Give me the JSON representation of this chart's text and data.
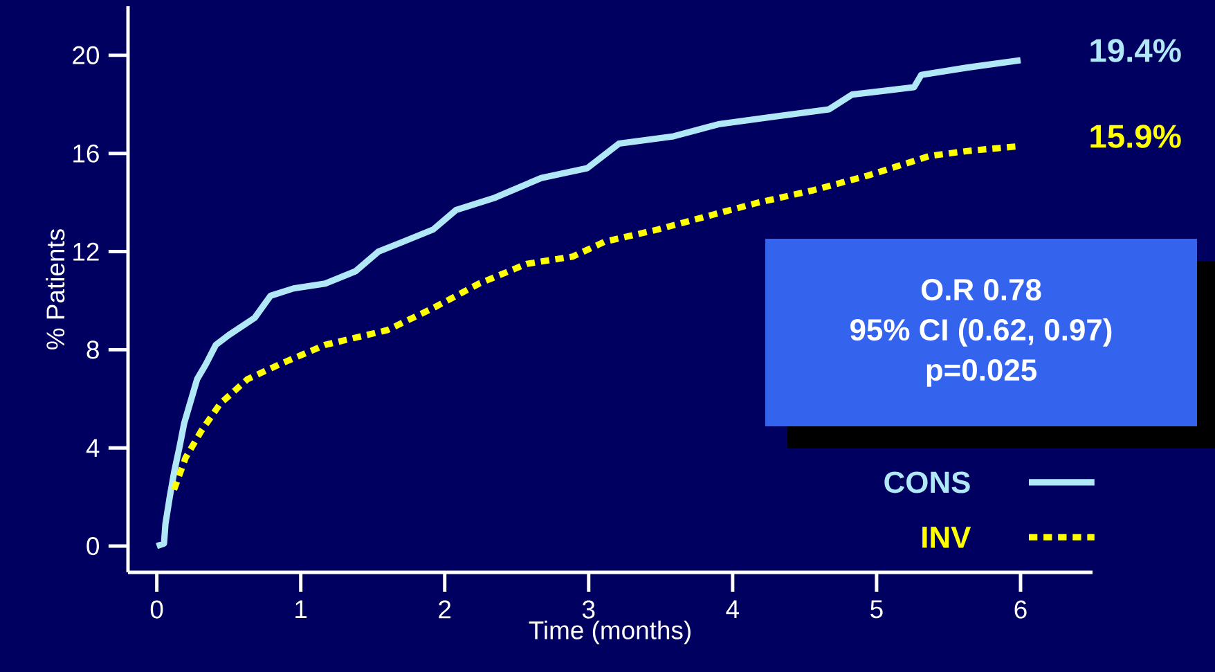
{
  "chart_data": {
    "type": "line",
    "xlabel": "Time (months)",
    "ylabel": "% Patients",
    "xlim": [
      -0.2,
      6.5
    ],
    "ylim": [
      -1.07,
      22
    ],
    "xticks": [
      0,
      1,
      2,
      3,
      4,
      5,
      6
    ],
    "yticks": [
      0,
      4,
      8,
      12,
      16,
      20
    ],
    "grid": false,
    "legend": "bottom right",
    "marker": "none",
    "series": [
      {
        "name": "CONS",
        "color": "#b0e8f8",
        "line_style": "solid",
        "x": [
          0,
          0.05,
          0.06,
          0.09,
          0.12,
          0.16,
          0.19,
          0.23,
          0.28,
          0.34,
          0.41,
          0.5,
          0.68,
          0.79,
          0.95,
          1.17,
          1.38,
          1.54,
          1.71,
          1.92,
          2.08,
          2.35,
          2.67,
          2.99,
          3.21,
          3.59,
          3.91,
          4.29,
          4.67,
          4.83,
          5.26,
          5.31,
          5.63,
          6
        ],
        "values": [
          0,
          0.1,
          0.9,
          2,
          3,
          4.1,
          5,
          5.8,
          6.8,
          7.4,
          8.2,
          8.6,
          9.3,
          10.2,
          10.5,
          10.7,
          11.2,
          12,
          12.4,
          12.9,
          13.7,
          14.2,
          15,
          15.4,
          16.4,
          16.7,
          17.2,
          17.5,
          17.8,
          18.4,
          18.7,
          19.2,
          19.5,
          19.8
        ]
      },
      {
        "name": "INV",
        "color": "#ffff00",
        "line_style": "dotted",
        "x": [
          0.12,
          0.2,
          0.31,
          0.44,
          0.63,
          0.85,
          1.17,
          1.6,
          1.92,
          2.24,
          2.57,
          2.89,
          3.11,
          3.48,
          3.86,
          4.18,
          4.56,
          4.94,
          5.37,
          5.63,
          6
        ],
        "values": [
          2.3,
          3.6,
          4.7,
          5.8,
          6.8,
          7.4,
          8.2,
          8.8,
          9.7,
          10.7,
          11.5,
          11.8,
          12.4,
          12.9,
          13.5,
          14.0,
          14.5,
          15.1,
          15.9,
          16.1,
          16.3
        ]
      }
    ],
    "annotations": [
      {
        "text": "19.4%",
        "x": 6,
        "y": 19.8
      },
      {
        "text": "15.9%",
        "x": 6,
        "y": 16.3
      },
      "O.R  0.78",
      "95% CI (0.62, 0.97)",
      "p=0.025"
    ]
  }
}
